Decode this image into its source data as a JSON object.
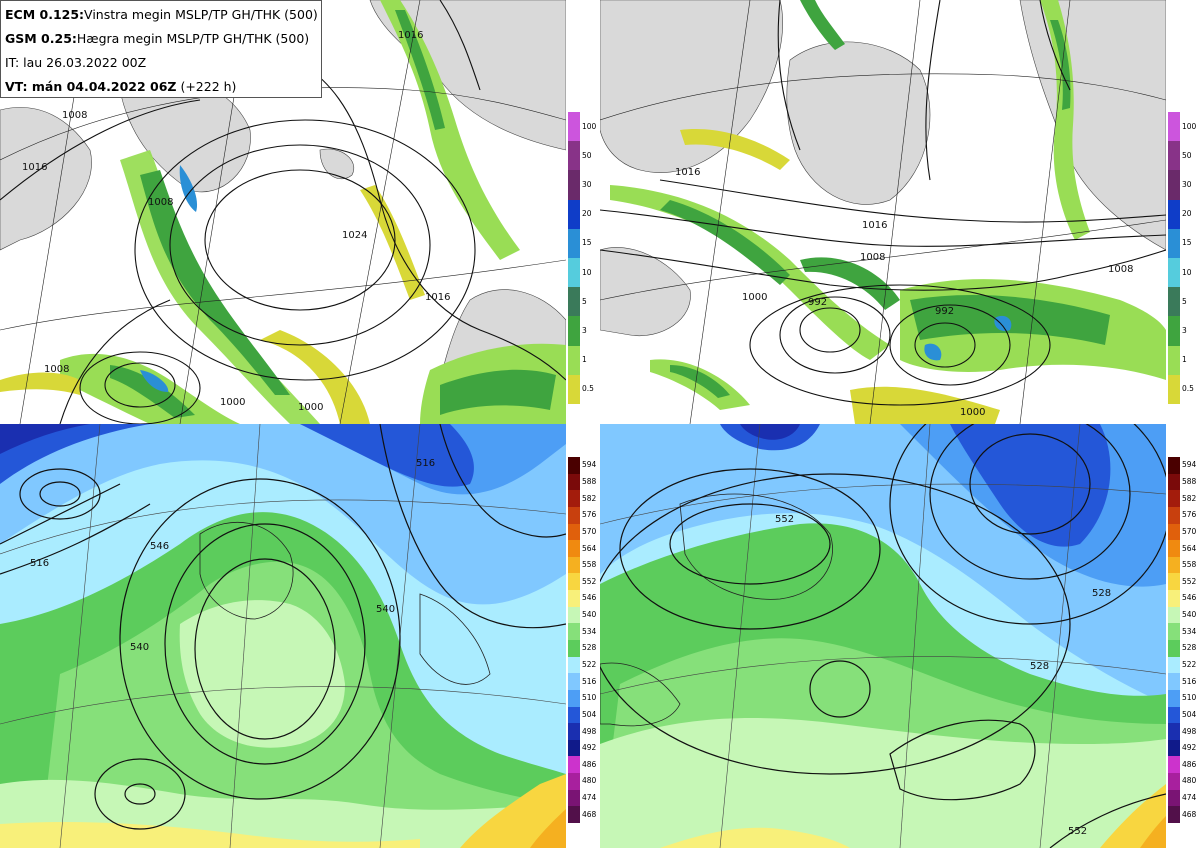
{
  "header": {
    "line1_bold": "ECM 0.125:",
    "line1_rest": "Vinstra megin MSLP/TP GH/THK (500)",
    "line2_bold": "GSM 0.25:",
    "line2_rest": "Hægra megin MSLP/TP GH/THK (500)",
    "line3": "IT: lau 26.03.2022 00Z",
    "line4_bold": "VT: mán 04.04.2022 06Z",
    "line4_rest": " (+222 h)"
  },
  "precip_scale": {
    "ticks": [
      "100",
      "50",
      "30",
      "20",
      "15",
      "10",
      "5",
      "3",
      "1",
      "0.5"
    ],
    "colors": [
      "#cc55dd",
      "#883388",
      "#6a2a6a",
      "#0f3dc8",
      "#2a8fd6",
      "#55ccdd",
      "#3a7a5a",
      "#3fa43f",
      "#99dd55",
      "#d8d838"
    ]
  },
  "thickness_scale": {
    "ticks": [
      "594",
      "588",
      "582",
      "576",
      "570",
      "564",
      "558",
      "552",
      "546",
      "540",
      "534",
      "528",
      "522",
      "516",
      "510",
      "504",
      "498",
      "492",
      "486",
      "480",
      "474",
      "468"
    ],
    "colors": [
      "#4a0000",
      "#7a0a0a",
      "#a31c0c",
      "#c8400e",
      "#e0600c",
      "#f08a10",
      "#f5b020",
      "#f8d640",
      "#f8f07a",
      "#c6f7b6",
      "#86e07a",
      "#5ccc5c",
      "#aaecff",
      "#80c8ff",
      "#4d9ef5",
      "#2457d8",
      "#1a2fb0",
      "#101a8a",
      "#cc33cc",
      "#a8209e",
      "#7a1474",
      "#52104a"
    ]
  },
  "maps": {
    "tl_labels": [
      "1016",
      "1008",
      "1024",
      "1016",
      "1008",
      "1000",
      "1008",
      "1000",
      "1016"
    ],
    "tr_labels": [
      "1016",
      "1008",
      "1000",
      "992",
      "992",
      "1000",
      "1008",
      "1016"
    ],
    "bl_labels": [
      "516",
      "540",
      "540",
      "516",
      "546"
    ],
    "br_labels": [
      "552",
      "528",
      "528",
      "552"
    ]
  }
}
